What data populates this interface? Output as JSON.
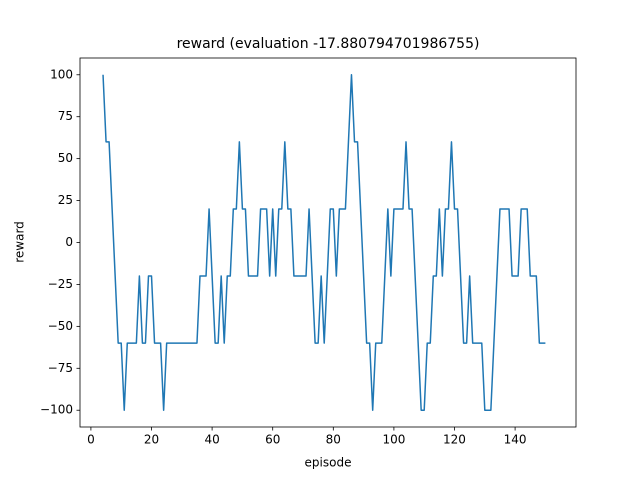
{
  "chart_data": {
    "type": "line",
    "title": "reward (evaluation -17.880794701986755)",
    "xlabel": "episode",
    "ylabel": "reward",
    "x": [
      4,
      5,
      6,
      7,
      8,
      9,
      10,
      11,
      12,
      13,
      14,
      15,
      16,
      17,
      18,
      19,
      20,
      21,
      22,
      23,
      24,
      25,
      26,
      27,
      28,
      29,
      30,
      31,
      32,
      33,
      34,
      35,
      36,
      37,
      38,
      39,
      40,
      41,
      42,
      43,
      44,
      45,
      46,
      47,
      48,
      49,
      50,
      51,
      52,
      53,
      54,
      55,
      56,
      57,
      58,
      59,
      60,
      61,
      62,
      63,
      64,
      65,
      66,
      67,
      68,
      69,
      70,
      71,
      72,
      73,
      74,
      75,
      76,
      77,
      78,
      79,
      80,
      81,
      82,
      83,
      84,
      85,
      86,
      87,
      88,
      89,
      90,
      91,
      92,
      93,
      94,
      95,
      96,
      97,
      98,
      99,
      100,
      101,
      102,
      103,
      104,
      105,
      106,
      107,
      108,
      109,
      110,
      111,
      112,
      113,
      114,
      115,
      116,
      117,
      118,
      119,
      120,
      121,
      122,
      123,
      124,
      125,
      126,
      127,
      128,
      129,
      130,
      131,
      132,
      133,
      134,
      135,
      136,
      137,
      138,
      139,
      140,
      141,
      142,
      143,
      144,
      145,
      146,
      147,
      148,
      149,
      150
    ],
    "series": [
      {
        "name": "reward",
        "color": "#1f77b4",
        "values": [
          100,
          60,
          60,
          20,
          -20,
          -60,
          -60,
          -100,
          -60,
          -60,
          -60,
          -60,
          -20,
          -60,
          -60,
          -20,
          -20,
          -60,
          -60,
          -60,
          -100,
          -60,
          -60,
          -60,
          -60,
          -60,
          -60,
          -60,
          -60,
          -60,
          -60,
          -60,
          -20,
          -20,
          -20,
          20,
          -20,
          -60,
          -60,
          -20,
          -60,
          -20,
          -20,
          20,
          20,
          60,
          20,
          20,
          -20,
          -20,
          -20,
          -20,
          20,
          20,
          20,
          -20,
          20,
          -20,
          20,
          20,
          60,
          20,
          20,
          -20,
          -20,
          -20,
          -20,
          -20,
          20,
          -20,
          -60,
          -60,
          -20,
          -60,
          -20,
          20,
          20,
          -20,
          20,
          20,
          20,
          60,
          100,
          60,
          60,
          20,
          -20,
          -60,
          -60,
          -100,
          -60,
          -60,
          -60,
          -20,
          20,
          -20,
          20,
          20,
          20,
          20,
          60,
          20,
          20,
          -20,
          -60,
          -100,
          -100,
          -60,
          -60,
          -20,
          -20,
          20,
          -20,
          20,
          20,
          60,
          20,
          20,
          -20,
          -60,
          -60,
          -20,
          -60,
          -60,
          -60,
          -60,
          -100,
          -100,
          -100,
          -60,
          -20,
          20,
          20,
          20,
          20,
          -20,
          -20,
          -20,
          20,
          20,
          20,
          -20,
          -20,
          -20,
          -60,
          -60,
          -60
        ]
      }
    ],
    "xlim": [
      -3.6,
      160.1
    ],
    "xticks": [
      0,
      20,
      40,
      60,
      80,
      100,
      120,
      140
    ],
    "ylim": [
      -110,
      110
    ],
    "yticks": [
      {
        "value": -100,
        "label": "−100"
      },
      {
        "value": -75,
        "label": "−75"
      },
      {
        "value": -50,
        "label": "−50"
      },
      {
        "value": -25,
        "label": "−25"
      },
      0,
      25,
      50,
      75,
      100
    ],
    "grid": false
  }
}
